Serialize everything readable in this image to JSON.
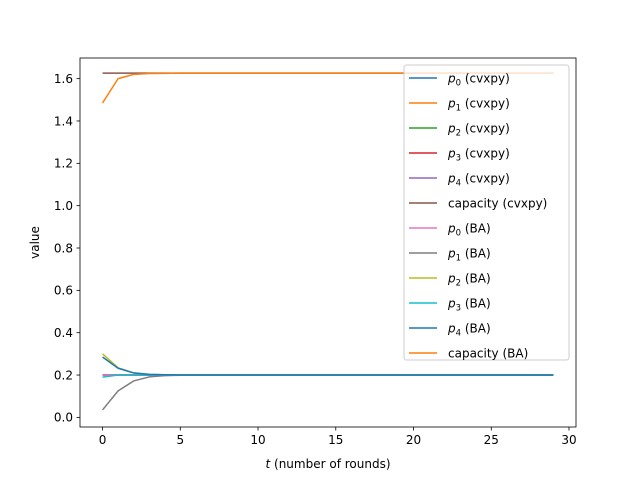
{
  "chart_data": {
    "type": "line",
    "title": "",
    "xlabel": "t (number of rounds)",
    "ylabel": "value",
    "xlim": [
      -1.45,
      30.45
    ],
    "ylim": [
      -0.0455,
      1.6975
    ],
    "x": [
      0,
      1,
      2,
      3,
      4,
      5,
      6,
      7,
      8,
      9,
      10,
      11,
      12,
      13,
      14,
      15,
      16,
      17,
      18,
      19,
      20,
      21,
      22,
      23,
      24,
      25,
      26,
      27,
      28,
      29
    ],
    "xticks": [
      0,
      5,
      10,
      15,
      20,
      25,
      30
    ],
    "yticks": [
      0.0,
      0.2,
      0.4,
      0.6,
      0.8,
      1.0,
      1.2,
      1.4,
      1.6
    ],
    "grid": false,
    "legend_position": "top-right",
    "series": [
      {
        "name": "p_0 (cvxpy)",
        "label_math": "p",
        "label_sub": "0",
        "label_rest": " (cvxpy)",
        "color": "#1f77b4",
        "values": "const:0.2"
      },
      {
        "name": "p_1 (cvxpy)",
        "label_math": "p",
        "label_sub": "1",
        "label_rest": " (cvxpy)",
        "color": "#ff7f0e",
        "values": "const:0.2"
      },
      {
        "name": "p_2 (cvxpy)",
        "label_math": "p",
        "label_sub": "2",
        "label_rest": " (cvxpy)",
        "color": "#2ca02c",
        "values": "const:0.2"
      },
      {
        "name": "p_3 (cvxpy)",
        "label_math": "p",
        "label_sub": "3",
        "label_rest": " (cvxpy)",
        "color": "#d62728",
        "values": "const:0.2"
      },
      {
        "name": "p_4 (cvxpy)",
        "label_math": "p",
        "label_sub": "4",
        "label_rest": " (cvxpy)",
        "color": "#9467bd",
        "values": "const:0.2"
      },
      {
        "name": "capacity (cvxpy)",
        "label_math": "",
        "label_sub": "",
        "label_rest": "capacity (cvxpy)",
        "color": "#8c564b",
        "values": "const:1.626"
      },
      {
        "name": "p_0 (BA)",
        "label_math": "p",
        "label_sub": "0",
        "label_rest": " (BA)",
        "color": "#e377c2",
        "values": [
          0.2,
          0.2,
          0.2,
          0.2,
          0.2,
          0.2,
          0.2,
          0.2,
          0.2,
          0.2,
          0.2,
          0.2,
          0.2,
          0.2,
          0.2,
          0.2,
          0.2,
          0.2,
          0.2,
          0.2,
          0.2,
          0.2,
          0.2,
          0.2,
          0.2,
          0.2,
          0.2,
          0.2,
          0.2,
          0.2
        ]
      },
      {
        "name": "p_1 (BA)",
        "label_math": "p",
        "label_sub": "1",
        "label_rest": " (BA)",
        "color": "#7f7f7f",
        "values": [
          0.035,
          0.125,
          0.172,
          0.191,
          0.197,
          0.199,
          0.2,
          0.2,
          0.2,
          0.2,
          0.2,
          0.2,
          0.2,
          0.2,
          0.2,
          0.2,
          0.2,
          0.2,
          0.2,
          0.2,
          0.2,
          0.2,
          0.2,
          0.2,
          0.2,
          0.2,
          0.2,
          0.2,
          0.2,
          0.2
        ]
      },
      {
        "name": "p_2 (BA)",
        "label_math": "p",
        "label_sub": "2",
        "label_rest": " (BA)",
        "color": "#bcbd22",
        "values": [
          0.3,
          0.234,
          0.21,
          0.203,
          0.201,
          0.2,
          0.2,
          0.2,
          0.2,
          0.2,
          0.2,
          0.2,
          0.2,
          0.2,
          0.2,
          0.2,
          0.2,
          0.2,
          0.2,
          0.2,
          0.2,
          0.2,
          0.2,
          0.2,
          0.2,
          0.2,
          0.2,
          0.2,
          0.2,
          0.2
        ]
      },
      {
        "name": "p_3 (BA)",
        "label_math": "p",
        "label_sub": "3",
        "label_rest": " (BA)",
        "color": "#17becf",
        "values": [
          0.19,
          0.2,
          0.2,
          0.2,
          0.2,
          0.2,
          0.2,
          0.2,
          0.2,
          0.2,
          0.2,
          0.2,
          0.2,
          0.2,
          0.2,
          0.2,
          0.2,
          0.2,
          0.2,
          0.2,
          0.2,
          0.2,
          0.2,
          0.2,
          0.2,
          0.2,
          0.2,
          0.2,
          0.2,
          0.2
        ]
      },
      {
        "name": "p_4 (BA)",
        "label_math": "p",
        "label_sub": "4",
        "label_rest": " (BA)",
        "color": "#1f77b4",
        "values": [
          0.285,
          0.232,
          0.21,
          0.203,
          0.201,
          0.2,
          0.2,
          0.2,
          0.2,
          0.2,
          0.2,
          0.2,
          0.2,
          0.2,
          0.2,
          0.2,
          0.2,
          0.2,
          0.2,
          0.2,
          0.2,
          0.2,
          0.2,
          0.2,
          0.2,
          0.2,
          0.2,
          0.2,
          0.2,
          0.2
        ]
      },
      {
        "name": "capacity (BA)",
        "label_math": "",
        "label_sub": "",
        "label_rest": "capacity (BA)",
        "color": "#ff7f0e",
        "values": [
          1.485,
          1.6,
          1.62,
          1.624,
          1.625,
          1.626,
          1.626,
          1.626,
          1.626,
          1.626,
          1.626,
          1.626,
          1.626,
          1.626,
          1.626,
          1.626,
          1.626,
          1.626,
          1.626,
          1.626,
          1.626,
          1.626,
          1.626,
          1.626,
          1.626,
          1.626,
          1.626,
          1.626,
          1.626,
          1.626
        ]
      }
    ]
  }
}
